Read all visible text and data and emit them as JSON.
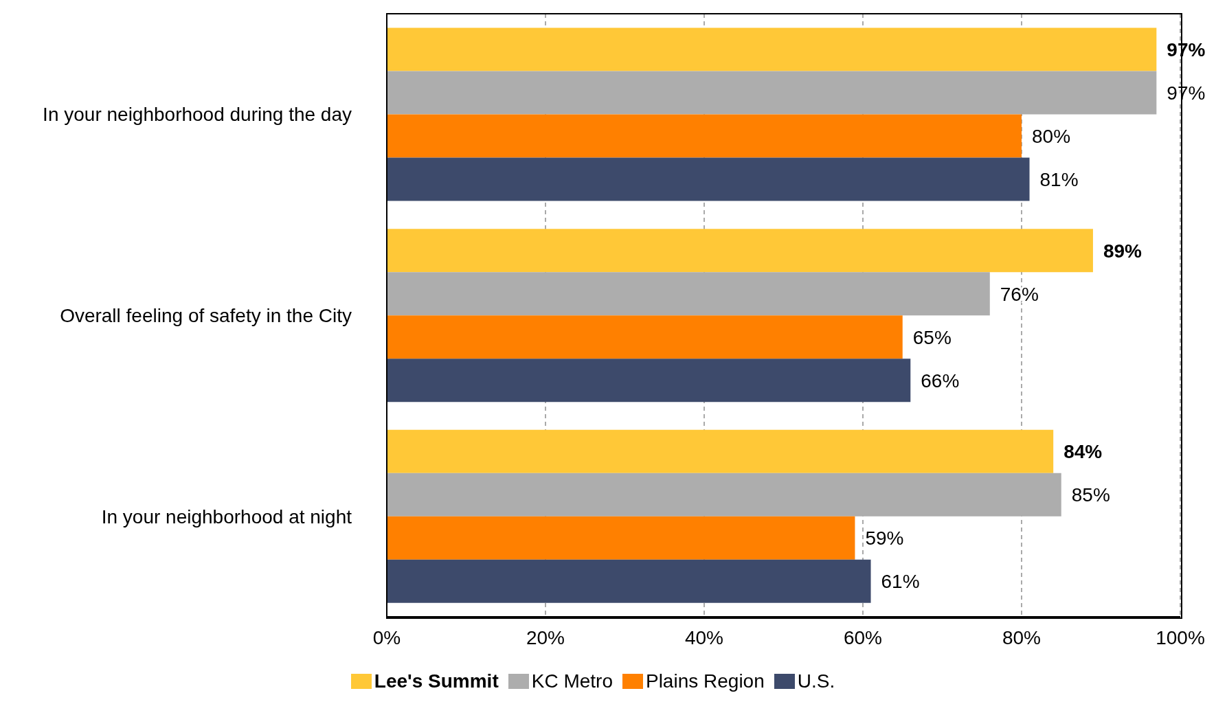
{
  "chart_data": {
    "type": "bar",
    "orientation": "horizontal",
    "categories": [
      "In your neighborhood during the day",
      "Overall feeling of safety in the City",
      "In your neighborhood at night"
    ],
    "series": [
      {
        "name": "Lee's Summit",
        "color": "#ffc837",
        "values": [
          97,
          89,
          84
        ],
        "value_labels": [
          "97%",
          "89%",
          "84%"
        ]
      },
      {
        "name": "KC Metro",
        "color": "#adadad",
        "values": [
          97,
          76,
          85
        ],
        "value_labels": [
          "97%",
          "76%",
          "85%"
        ]
      },
      {
        "name": "Plains Region",
        "color": "#ff8000",
        "values": [
          80,
          65,
          59
        ],
        "value_labels": [
          "80%",
          "65%",
          "59%"
        ]
      },
      {
        "name": "U.S.",
        "color": "#3d4a6b",
        "values": [
          81,
          66,
          61
        ],
        "value_labels": [
          "81%",
          "66%",
          "61%"
        ]
      }
    ],
    "xlim": [
      0,
      100
    ],
    "xticks": [
      {
        "value": 0,
        "label": "0%"
      },
      {
        "value": 20,
        "label": "20%"
      },
      {
        "value": 40,
        "label": "40%"
      },
      {
        "value": 60,
        "label": "60%"
      },
      {
        "value": 80,
        "label": "80%"
      },
      {
        "value": 100,
        "label": "100%"
      }
    ],
    "grid": "x",
    "legend": "bottom"
  }
}
